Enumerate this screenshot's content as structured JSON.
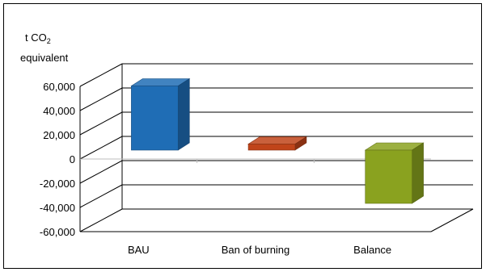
{
  "chart_data": {
    "type": "bar",
    "ylabel": {
      "prefix": "t CO",
      "subscript": "2",
      "line2": "equivalent"
    },
    "categories": [
      "BAU",
      "Ban of burning",
      "Balance"
    ],
    "series": [
      {
        "values": [
          53000,
          5000,
          -44000
        ]
      }
    ],
    "colors": [
      "#1f6db5",
      "#c0441a",
      "#8aa21f"
    ],
    "ylim": [
      -60000,
      60000
    ],
    "yticks": [
      60000,
      40000,
      20000,
      0,
      -20000,
      -40000,
      -60000
    ],
    "ytick_labels": [
      "60,000",
      "40,000",
      "20,000",
      "0",
      "-20,000",
      "-40,000",
      "-60,000"
    ],
    "grid": true,
    "legend": "none",
    "three_d": true
  }
}
